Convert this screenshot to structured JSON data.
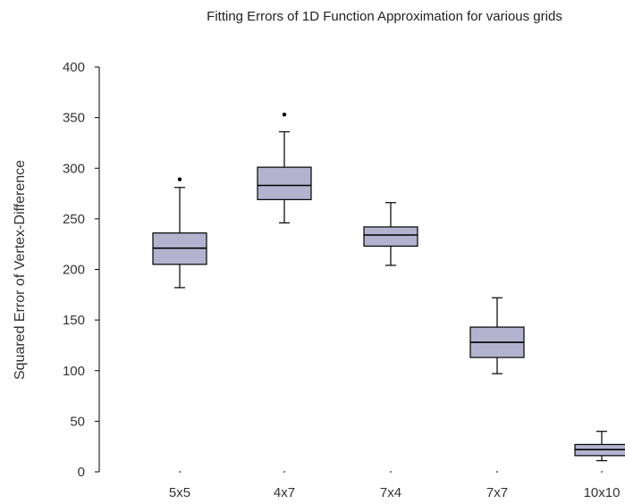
{
  "chart_data": {
    "type": "boxplot",
    "title": "Fitting Errors of 1D Function Approximation for various grids",
    "ylabel": "Squared Error of Vertex-Difference",
    "xlabel": "",
    "ylim": [
      0,
      400
    ],
    "yticks": [
      0,
      50,
      100,
      150,
      200,
      250,
      300,
      350,
      400
    ],
    "grid": false,
    "box_color": "#b4b3cf",
    "categories": [
      "5x5",
      "4x7",
      "7x4",
      "7x7",
      "10x10"
    ],
    "boxes": [
      {
        "category": "5x5",
        "whisker_low": 182,
        "q1": 205,
        "median": 221,
        "q3": 236,
        "whisker_high": 281,
        "outliers": [
          289
        ]
      },
      {
        "category": "4x7",
        "whisker_low": 246,
        "q1": 269,
        "median": 283,
        "q3": 301,
        "whisker_high": 336,
        "outliers": [
          353
        ]
      },
      {
        "category": "7x4",
        "whisker_low": 204,
        "q1": 223,
        "median": 234,
        "q3": 242,
        "whisker_high": 266,
        "outliers": []
      },
      {
        "category": "7x7",
        "whisker_low": 97,
        "q1": 113,
        "median": 128,
        "q3": 143,
        "whisker_high": 172,
        "outliers": []
      },
      {
        "category": "10x10",
        "whisker_low": 11,
        "q1": 16,
        "median": 22,
        "q3": 27,
        "whisker_high": 40,
        "outliers": []
      }
    ]
  }
}
